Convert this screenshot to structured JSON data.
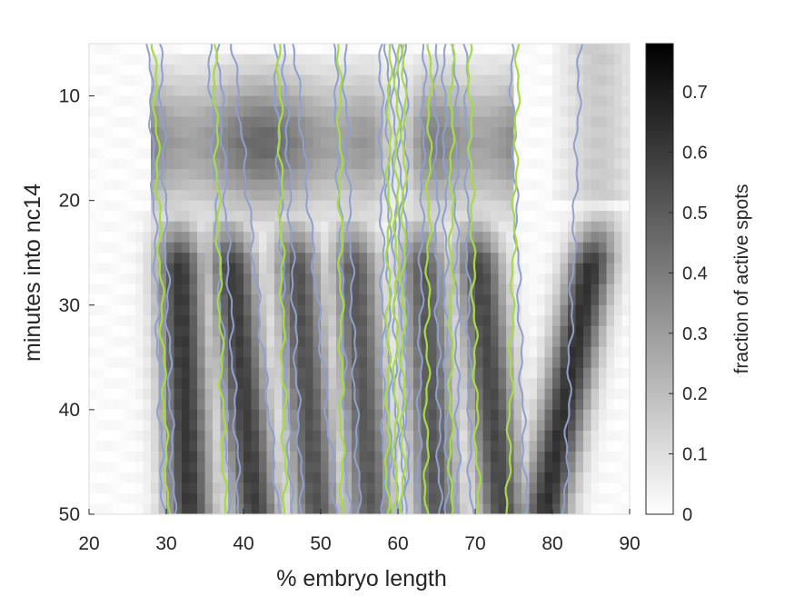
{
  "chart_data": {
    "type": "heatmap",
    "xlabel": "% embryo length",
    "ylabel": "minutes into nc14",
    "xlim": [
      20,
      90
    ],
    "ylim": [
      5,
      50
    ],
    "y_reversed": true,
    "x_ticks": [
      20,
      30,
      40,
      50,
      60,
      70,
      80,
      90
    ],
    "y_ticks": [
      10,
      20,
      30,
      40,
      50
    ],
    "colorbar": {
      "label": "fraction of active spots",
      "range": [
        0,
        0.78
      ],
      "ticks": [
        0,
        0.1,
        0.2,
        0.3,
        0.4,
        0.5,
        0.6,
        0.7
      ],
      "colormap": "white-to-black"
    },
    "stripes": [
      {
        "early_x": 31.5,
        "late_x": 33,
        "peak": 0.6
      },
      {
        "early_x": 38,
        "late_x": 41.5,
        "peak": 0.58
      },
      {
        "early_x": 46.5,
        "late_x": 49.5,
        "peak": 0.52
      },
      {
        "early_x": 54,
        "late_x": 56.5,
        "peak": 0.5
      },
      {
        "early_x": 63,
        "late_x": 65,
        "peak": 0.5
      },
      {
        "early_x": 70,
        "late_x": 73.5,
        "peak": 0.55
      },
      {
        "early_x": 86,
        "late_x": 79,
        "peak": 0.62
      }
    ],
    "early_band": {
      "minutes": [
        8,
        21
      ],
      "peak": 0.45
    },
    "contour_colors": {
      "blue": "#8ea0cf",
      "green": "#a6da47"
    },
    "contour_lines": {
      "blue": [
        {
          "x_top": 27.8,
          "x_bottom": 29.6
        },
        {
          "x_top": 29.2,
          "x_bottom": 31.0
        },
        {
          "x_top": 35.5,
          "x_bottom": 38.3
        },
        {
          "x_top": 36.8,
          "x_bottom": 39.5
        },
        {
          "x_top": 38.6,
          "x_bottom": 44.6
        },
        {
          "x_top": 44.0,
          "x_bottom": 46.2
        },
        {
          "x_top": 45.2,
          "x_bottom": 47.6
        },
        {
          "x_top": 46.6,
          "x_bottom": 52.0
        },
        {
          "x_top": 51.8,
          "x_bottom": 53.6
        },
        {
          "x_top": 53.0,
          "x_bottom": 55.0
        },
        {
          "x_top": 57.8,
          "x_bottom": 58.2
        },
        {
          "x_top": 58.6,
          "x_bottom": 59.0
        },
        {
          "x_top": 59.4,
          "x_bottom": 59.8
        },
        {
          "x_top": 60.2,
          "x_bottom": 60.6
        },
        {
          "x_top": 61.0,
          "x_bottom": 61.2
        },
        {
          "x_top": 63.4,
          "x_bottom": 62.6
        },
        {
          "x_top": 64.8,
          "x_bottom": 65.4
        },
        {
          "x_top": 66.0,
          "x_bottom": 66.4
        },
        {
          "x_top": 67.4,
          "x_bottom": 67.8
        },
        {
          "x_top": 68.8,
          "x_bottom": 69.4
        },
        {
          "x_top": 74.6,
          "x_bottom": 76.6
        },
        {
          "x_top": 83.6,
          "x_bottom": 81.6
        }
      ],
      "green": [
        {
          "x_top": 28.4,
          "x_bottom": 30.2
        },
        {
          "x_top": 36.2,
          "x_bottom": 37.6
        },
        {
          "x_top": 44.6,
          "x_bottom": 45.4
        },
        {
          "x_top": 52.4,
          "x_bottom": 52.8
        },
        {
          "x_top": 58.9,
          "x_bottom": 58.6
        },
        {
          "x_top": 59.9,
          "x_bottom": 59.6
        },
        {
          "x_top": 60.8,
          "x_bottom": 60.6
        },
        {
          "x_top": 64.2,
          "x_bottom": 63.6
        },
        {
          "x_top": 67.0,
          "x_bottom": 66.8
        },
        {
          "x_top": 69.2,
          "x_bottom": 70.4
        },
        {
          "x_top": 75.6,
          "x_bottom": 74.2
        }
      ]
    }
  }
}
